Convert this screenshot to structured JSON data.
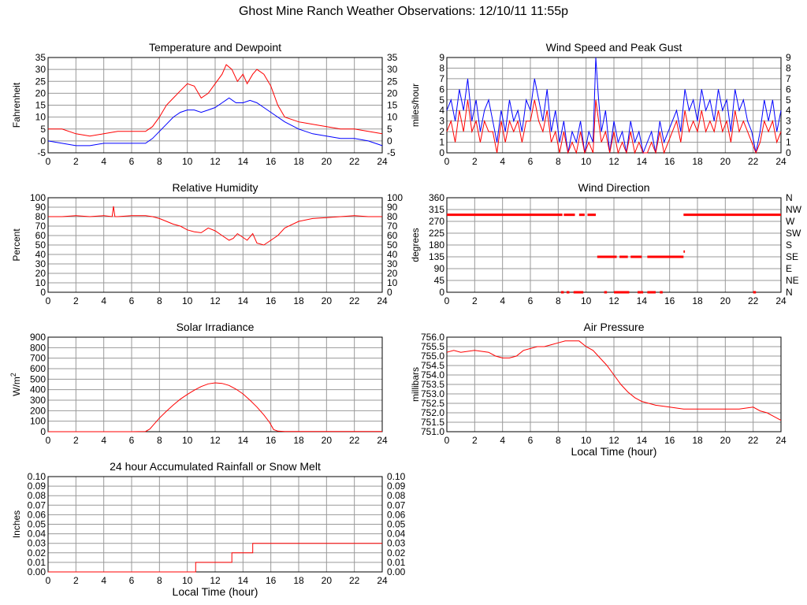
{
  "title": "Ghost Mine Ranch Weather Observations: 12/10/11 11:55p",
  "colors": {
    "primary": "#ff0000",
    "secondary": "#0000ff",
    "grid": "#999999",
    "frame": "#000000"
  },
  "chart_data": [
    {
      "id": "temp",
      "type": "line",
      "title": "Temperature and Dewpoint",
      "ylabel": "Fahrenheit",
      "xlabel": "",
      "xlim": [
        0,
        24
      ],
      "ylim": [
        -5,
        35
      ],
      "xticks": [
        "0",
        "2",
        "4",
        "6",
        "8",
        "10",
        "12",
        "14",
        "16",
        "18",
        "20",
        "22",
        "24"
      ],
      "yticks": [
        "-5",
        "0",
        "5",
        "10",
        "15",
        "20",
        "25",
        "30",
        "35"
      ],
      "right_ticks": [
        "-5",
        "0",
        "5",
        "10",
        "15",
        "20",
        "25",
        "30",
        "35"
      ],
      "grid": true,
      "series": [
        {
          "color": "#ff0000",
          "x": [
            0,
            1,
            2,
            3,
            4,
            5,
            6,
            7,
            7.5,
            8,
            8.5,
            9,
            9.5,
            10,
            10.5,
            11,
            11.5,
            12,
            12.5,
            12.8,
            13.2,
            13.6,
            14,
            14.3,
            14.7,
            15,
            15.5,
            16,
            16.5,
            17,
            18,
            19,
            20,
            21,
            22,
            23,
            24
          ],
          "y": [
            5,
            5,
            3,
            2,
            3,
            4,
            4,
            4,
            6,
            10,
            15,
            18,
            21,
            24,
            23,
            18,
            20,
            24,
            28,
            32,
            30,
            25,
            28,
            24,
            28,
            30,
            28,
            23,
            15,
            10,
            8,
            7,
            6,
            5,
            5,
            4,
            3
          ]
        },
        {
          "color": "#0000ff",
          "x": [
            0,
            1,
            2,
            3,
            4,
            5,
            6,
            7,
            7.5,
            8,
            8.5,
            9,
            9.5,
            10,
            10.5,
            11,
            11.5,
            12,
            12.5,
            13,
            13.5,
            14,
            14.5,
            15,
            15.5,
            16,
            17,
            18,
            19,
            20,
            21,
            22,
            23,
            24
          ],
          "y": [
            0,
            -1,
            -2,
            -2,
            -1,
            -1,
            -1,
            -1,
            1,
            4,
            7,
            10,
            12,
            13,
            13,
            12,
            13,
            14,
            16,
            18,
            16,
            16,
            17,
            16,
            14,
            12,
            8,
            5,
            3,
            2,
            1,
            1,
            0,
            -2
          ]
        }
      ]
    },
    {
      "id": "wind",
      "type": "line",
      "title": "Wind Speed and Peak Gust",
      "ylabel": "miles/hour",
      "xlabel": "",
      "xlim": [
        0,
        24
      ],
      "ylim": [
        0,
        9
      ],
      "xticks": [
        "0",
        "2",
        "4",
        "6",
        "8",
        "10",
        "12",
        "14",
        "16",
        "18",
        "20",
        "22",
        "24"
      ],
      "yticks": [
        "0",
        "1",
        "2",
        "3",
        "4",
        "5",
        "6",
        "7",
        "8",
        "9"
      ],
      "right_ticks": [
        "0",
        "1",
        "2",
        "3",
        "4",
        "5",
        "6",
        "7",
        "8",
        "9"
      ],
      "grid": true,
      "series": [
        {
          "color": "#0000ff",
          "x": [
            0,
            0.3,
            0.6,
            0.9,
            1.2,
            1.5,
            1.8,
            2.1,
            2.4,
            2.7,
            3,
            3.3,
            3.6,
            3.9,
            4.2,
            4.5,
            4.8,
            5.1,
            5.4,
            5.7,
            6,
            6.3,
            6.6,
            6.9,
            7.2,
            7.5,
            7.8,
            8.1,
            8.4,
            8.7,
            9,
            9.3,
            9.6,
            9.9,
            10.2,
            10.5,
            10.7,
            10.9,
            11.1,
            11.4,
            11.7,
            12,
            12.3,
            12.6,
            12.9,
            13.2,
            13.5,
            13.8,
            14.1,
            14.4,
            14.7,
            15,
            15.3,
            15.6,
            15.9,
            16.2,
            16.5,
            16.8,
            17.1,
            17.4,
            17.7,
            18,
            18.3,
            18.6,
            18.9,
            19.2,
            19.5,
            19.8,
            20.1,
            20.4,
            20.7,
            21,
            21.3,
            21.6,
            21.9,
            22.2,
            22.5,
            22.8,
            23.1,
            23.4,
            23.7,
            24
          ],
          "y": [
            4,
            5,
            3,
            6,
            4,
            7,
            3,
            5,
            2,
            4,
            5,
            3,
            1,
            4,
            2,
            5,
            3,
            4,
            2,
            5,
            4,
            7,
            5,
            3,
            6,
            2,
            4,
            1,
            3,
            0,
            2,
            1,
            3,
            0,
            2,
            1,
            9,
            5,
            2,
            4,
            0,
            3,
            1,
            2,
            0,
            3,
            1,
            2,
            0,
            1,
            2,
            0,
            3,
            1,
            2,
            3,
            4,
            2,
            6,
            4,
            5,
            3,
            6,
            4,
            5,
            3,
            6,
            4,
            5,
            2,
            6,
            4,
            5,
            3,
            2,
            0,
            2,
            5,
            3,
            5,
            2,
            4
          ]
        },
        {
          "color": "#ff0000",
          "x": [
            0,
            0.3,
            0.6,
            0.9,
            1.2,
            1.5,
            1.8,
            2.1,
            2.4,
            2.7,
            3,
            3.3,
            3.6,
            3.9,
            4.2,
            4.5,
            4.8,
            5.1,
            5.4,
            5.7,
            6,
            6.3,
            6.6,
            6.9,
            7.2,
            7.5,
            7.8,
            8.1,
            8.4,
            8.7,
            9,
            9.3,
            9.6,
            9.9,
            10.2,
            10.5,
            10.7,
            10.9,
            11.1,
            11.4,
            11.7,
            12,
            12.3,
            12.6,
            12.9,
            13.2,
            13.5,
            13.8,
            14.1,
            14.4,
            14.7,
            15,
            15.3,
            15.6,
            15.9,
            16.2,
            16.5,
            16.8,
            17.1,
            17.4,
            17.7,
            18,
            18.3,
            18.6,
            18.9,
            19.2,
            19.5,
            19.8,
            20.1,
            20.4,
            20.7,
            21,
            21.3,
            21.6,
            21.9,
            22.2,
            22.5,
            22.8,
            23.1,
            23.4,
            23.7,
            24
          ],
          "y": [
            2,
            3,
            1,
            4,
            2,
            5,
            2,
            3,
            1,
            3,
            2,
            2,
            0,
            3,
            1,
            3,
            2,
            3,
            1,
            3,
            3,
            5,
            3,
            2,
            4,
            1,
            2,
            0,
            2,
            0,
            1,
            0,
            2,
            0,
            1,
            0,
            5,
            3,
            1,
            2,
            0,
            2,
            0,
            1,
            0,
            2,
            0,
            1,
            0,
            0,
            1,
            0,
            2,
            0,
            1,
            2,
            3,
            1,
            4,
            2,
            3,
            2,
            4,
            2,
            3,
            2,
            4,
            2,
            3,
            1,
            4,
            2,
            3,
            2,
            1,
            0,
            1,
            3,
            2,
            3,
            1,
            2
          ]
        }
      ]
    },
    {
      "id": "humidity",
      "type": "line",
      "title": "Relative Humidity",
      "ylabel": "Percent",
      "xlabel": "",
      "xlim": [
        0,
        24
      ],
      "ylim": [
        0,
        100
      ],
      "xticks": [
        "0",
        "2",
        "4",
        "6",
        "8",
        "10",
        "12",
        "14",
        "16",
        "18",
        "20",
        "22",
        "24"
      ],
      "yticks": [
        "0",
        "10",
        "20",
        "30",
        "40",
        "50",
        "60",
        "70",
        "80",
        "90",
        "100"
      ],
      "right_ticks": [
        "0",
        "10",
        "20",
        "30",
        "40",
        "50",
        "60",
        "70",
        "80",
        "90",
        "100"
      ],
      "grid": true,
      "series": [
        {
          "color": "#ff0000",
          "x": [
            0,
            1,
            2,
            3,
            4,
            4.6,
            4.7,
            4.8,
            5,
            6,
            7,
            7.5,
            8,
            8.5,
            9,
            9.5,
            10,
            10.5,
            11,
            11.5,
            12,
            12.5,
            13,
            13.3,
            13.6,
            14,
            14.3,
            14.7,
            15,
            15.5,
            16,
            16.5,
            17,
            18,
            19,
            20,
            21,
            22,
            23,
            24
          ],
          "y": [
            80,
            80,
            81,
            80,
            81,
            80,
            91,
            80,
            80,
            81,
            81,
            80,
            78,
            75,
            72,
            70,
            66,
            64,
            63,
            68,
            65,
            60,
            55,
            57,
            62,
            58,
            55,
            62,
            52,
            50,
            55,
            60,
            68,
            75,
            78,
            79,
            80,
            81,
            80,
            80
          ]
        }
      ]
    },
    {
      "id": "direction",
      "type": "scatter",
      "title": "Wind Direction",
      "ylabel": "degrees",
      "xlabel": "",
      "xlim": [
        0,
        24
      ],
      "ylim": [
        0,
        360
      ],
      "xticks": [
        "0",
        "2",
        "4",
        "6",
        "8",
        "10",
        "12",
        "14",
        "16",
        "18",
        "20",
        "22",
        "24"
      ],
      "yticks": [
        "0",
        "45",
        "90",
        "135",
        "180",
        "225",
        "270",
        "315",
        "360"
      ],
      "right_ticks": [
        "N",
        "NE",
        "E",
        "SE",
        "S",
        "SW",
        "W",
        "NW",
        "N"
      ],
      "grid": true,
      "segments": [
        {
          "x0": 0,
          "x1": 8.3,
          "y": 295
        },
        {
          "x0": 8.4,
          "x1": 9.2,
          "y": 295
        },
        {
          "x0": 9.5,
          "x1": 9.9,
          "y": 295
        },
        {
          "x0": 10.1,
          "x1": 10.7,
          "y": 295
        },
        {
          "x0": 17.0,
          "x1": 24,
          "y": 295
        },
        {
          "x0": 10.8,
          "x1": 12.2,
          "y": 135
        },
        {
          "x0": 12.4,
          "x1": 13.0,
          "y": 135
        },
        {
          "x0": 13.2,
          "x1": 14.0,
          "y": 135
        },
        {
          "x0": 14.4,
          "x1": 17.0,
          "y": 135
        },
        {
          "x0": 8.2,
          "x1": 8.4,
          "y": 0
        },
        {
          "x0": 8.6,
          "x1": 8.8,
          "y": 0
        },
        {
          "x0": 9.1,
          "x1": 9.8,
          "y": 0
        },
        {
          "x0": 11.3,
          "x1": 11.5,
          "y": 0
        },
        {
          "x0": 12.0,
          "x1": 13.1,
          "y": 0
        },
        {
          "x0": 13.7,
          "x1": 14.1,
          "y": 0
        },
        {
          "x0": 14.4,
          "x1": 15.0,
          "y": 0
        },
        {
          "x0": 15.3,
          "x1": 15.5,
          "y": 0
        },
        {
          "x0": 22.0,
          "x1": 22.2,
          "y": 0
        },
        {
          "x0": 17.0,
          "x1": 17.1,
          "y": 155
        }
      ],
      "series": [
        {
          "color": "#ff0000"
        }
      ]
    },
    {
      "id": "solar",
      "type": "line",
      "title": "Solar Irradiance",
      "ylabel": "W/m",
      "ylabel_sup": "2",
      "xlabel": "",
      "xlim": [
        0,
        24
      ],
      "ylim": [
        0,
        900
      ],
      "xticks": [
        "0",
        "2",
        "4",
        "6",
        "8",
        "10",
        "12",
        "14",
        "16",
        "18",
        "20",
        "22",
        "24"
      ],
      "yticks": [
        "0",
        "100",
        "200",
        "300",
        "400",
        "500",
        "600",
        "700",
        "800",
        "900"
      ],
      "right_ticks": [],
      "grid": true,
      "series": [
        {
          "color": "#ff0000",
          "x": [
            0,
            6,
            7,
            7.3,
            7.6,
            8,
            8.5,
            9,
            9.5,
            10,
            10.5,
            11,
            11.5,
            12,
            12.5,
            13,
            13.5,
            14,
            14.5,
            15,
            15.5,
            15.9,
            16.2,
            16.5,
            17,
            24
          ],
          "y": [
            0,
            0,
            2,
            25,
            70,
            130,
            195,
            255,
            310,
            355,
            395,
            430,
            455,
            465,
            460,
            440,
            405,
            360,
            300,
            235,
            160,
            90,
            20,
            5,
            2,
            2
          ]
        }
      ]
    },
    {
      "id": "pressure",
      "type": "line",
      "title": "Air Pressure",
      "ylabel": "millibars",
      "xlabel": "Local Time (hour)",
      "xlim": [
        0,
        24
      ],
      "ylim": [
        751.0,
        756.0
      ],
      "xticks": [
        "0",
        "2",
        "4",
        "6",
        "8",
        "10",
        "12",
        "14",
        "16",
        "18",
        "20",
        "22",
        "24"
      ],
      "yticks": [
        "751.0",
        "751.5",
        "752.0",
        "752.5",
        "753.0",
        "753.5",
        "754.0",
        "754.5",
        "755.0",
        "755.5",
        "756.0"
      ],
      "right_ticks": [],
      "grid": true,
      "series": [
        {
          "color": "#ff0000",
          "x": [
            0,
            0.5,
            1,
            2,
            3,
            3.5,
            4,
            4.5,
            5,
            5.5,
            6,
            6.5,
            7,
            7.5,
            8,
            8.5,
            9,
            9.5,
            10,
            10.5,
            11,
            11.5,
            12,
            12.5,
            13,
            13.5,
            14,
            14.5,
            15,
            16,
            17,
            18,
            19,
            20,
            21,
            22,
            22.5,
            23,
            23.5,
            24
          ],
          "y": [
            755.2,
            755.3,
            755.2,
            755.3,
            755.2,
            755.0,
            754.9,
            754.9,
            755.0,
            755.3,
            755.4,
            755.5,
            755.5,
            755.6,
            755.7,
            755.8,
            755.8,
            755.8,
            755.5,
            755.3,
            754.9,
            754.5,
            754.0,
            753.5,
            753.1,
            752.8,
            752.6,
            752.5,
            752.4,
            752.3,
            752.2,
            752.2,
            752.2,
            752.2,
            752.2,
            752.3,
            752.1,
            752.0,
            751.8,
            751.6
          ]
        }
      ]
    },
    {
      "id": "rain",
      "type": "line",
      "title": "24 hour Accumulated Rainfall or Snow Melt",
      "ylabel": "Inches",
      "xlabel": "Local Time (hour)",
      "xlim": [
        0,
        24
      ],
      "ylim": [
        0,
        0.1
      ],
      "xticks": [
        "0",
        "2",
        "4",
        "6",
        "8",
        "10",
        "12",
        "14",
        "16",
        "18",
        "20",
        "22",
        "24"
      ],
      "yticks": [
        "0.00",
        "0.01",
        "0.02",
        "0.03",
        "0.04",
        "0.05",
        "0.06",
        "0.07",
        "0.08",
        "0.09",
        "0.10"
      ],
      "right_ticks": [
        "0.00",
        "0.01",
        "0.02",
        "0.03",
        "0.04",
        "0.05",
        "0.06",
        "0.07",
        "0.08",
        "0.09",
        "0.10"
      ],
      "grid": true,
      "series": [
        {
          "color": "#ff0000",
          "x": [
            0,
            10.6,
            10.6,
            13.2,
            13.2,
            14.7,
            14.7,
            24
          ],
          "y": [
            0,
            0,
            0.01,
            0.01,
            0.02,
            0.02,
            0.03,
            0.03
          ]
        }
      ]
    }
  ]
}
